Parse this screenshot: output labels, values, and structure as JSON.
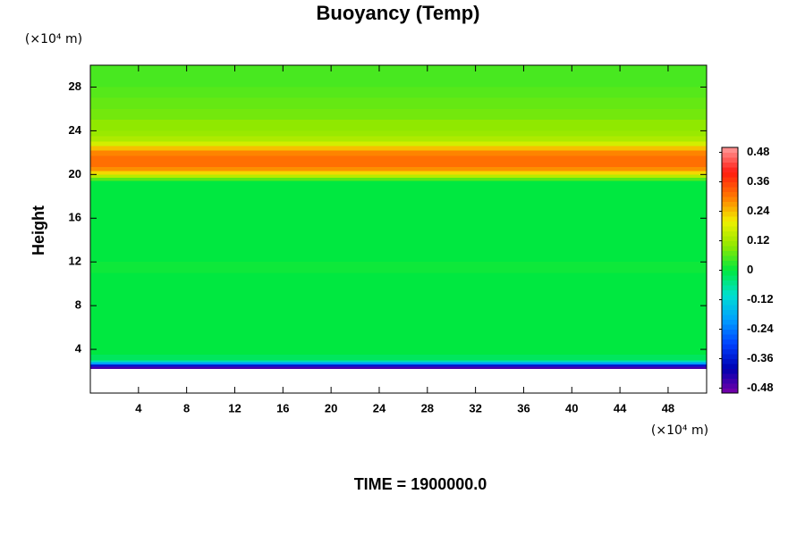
{
  "chart_data": {
    "type": "heatmap",
    "title": "Buoyancy (Temp)",
    "y_label": "Height",
    "y_unit": "(×10⁴ m)",
    "x_unit": "(×10⁴ m)",
    "time_label": "TIME = 1900000.0",
    "xlim": [
      0,
      51.2
    ],
    "xticks": [
      4,
      8,
      12,
      16,
      20,
      24,
      28,
      32,
      36,
      40,
      44,
      48
    ],
    "ylim": [
      0,
      30
    ],
    "yticks": [
      4,
      8,
      12,
      16,
      20,
      24,
      28
    ],
    "y_edges": [
      2.2,
      2.4,
      2.6,
      2.8,
      3.0,
      3.5,
      11,
      12,
      19.4,
      19.7,
      20,
      20.3,
      20.7,
      21.2,
      21.7,
      22.2,
      22.6,
      23,
      23.5,
      24,
      25,
      26,
      27,
      28,
      29,
      30
    ],
    "values": [
      -0.46,
      -0.36,
      -0.2,
      -0.08,
      -0.02,
      0.0,
      0.01,
      0.0,
      0.06,
      0.14,
      0.22,
      0.28,
      0.31,
      0.31,
      0.29,
      0.24,
      0.17,
      0.13,
      0.11,
      0.1,
      0.08,
      0.07,
      0.06,
      0.05,
      0.05
    ],
    "colorbar": {
      "lim": [
        -0.5,
        0.5
      ],
      "ticks": [
        0.48,
        0.36,
        0.24,
        0.12,
        0,
        -0.12,
        -0.24,
        -0.36,
        -0.48
      ]
    },
    "colormap": [
      "#7a00a8",
      "#0000b0",
      "#0040ff",
      "#00a0ff",
      "#00e0d0",
      "#00e840",
      "#90e800",
      "#f0f000",
      "#ff7800",
      "#ff1a10",
      "#ff9a9a"
    ]
  }
}
